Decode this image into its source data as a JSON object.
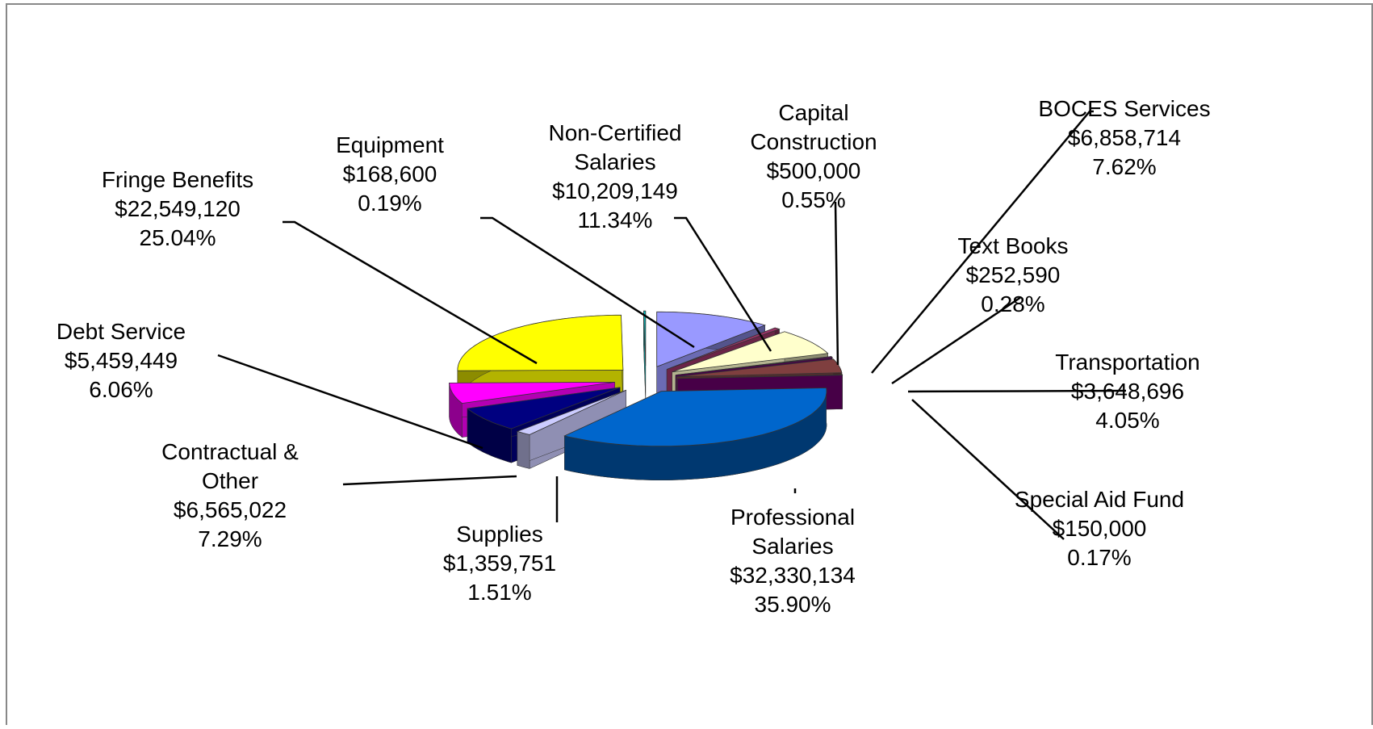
{
  "chart_data": {
    "type": "pie",
    "categories": [
      "Non-Certified Salaries",
      "Capital Construction",
      "BOCES Services",
      "Text Books",
      "Transportation",
      "Special Aid Fund",
      "Professional Salaries",
      "Supplies",
      "Contractual & Other",
      "Debt Service",
      "Fringe Benefits",
      "Equipment"
    ],
    "values": [
      10209149,
      500000,
      6858714,
      252590,
      3648696,
      150000,
      32330134,
      1359751,
      6565022,
      5459449,
      22549120,
      168600
    ],
    "value_labels": [
      "$10,209,149",
      "$500,000",
      "$6,858,714",
      "$252,590",
      "$3,648,696",
      "$150,000",
      "$32,330,134",
      "$1,359,751",
      "$6,565,022",
      "$5,459,449",
      "$22,549,120",
      "$168,600"
    ],
    "percents": [
      11.34,
      0.55,
      7.62,
      0.28,
      4.05,
      0.17,
      35.9,
      1.51,
      7.29,
      6.06,
      25.04,
      0.19
    ],
    "percent_labels": [
      "11.34%",
      "0.55%",
      "7.62%",
      "0.28%",
      "4.05%",
      "0.17%",
      "35.90%",
      "1.51%",
      "7.29%",
      "6.06%",
      "25.04%",
      "0.19%"
    ],
    "colors": [
      "#9999ff",
      "#993366",
      "#ffffcc",
      "#660066",
      "#7f3f3f",
      "#660066",
      "#0066cc",
      "#ccccff",
      "#000080",
      "#ff00ff",
      "#ffff00",
      "#00cccc"
    ]
  }
}
